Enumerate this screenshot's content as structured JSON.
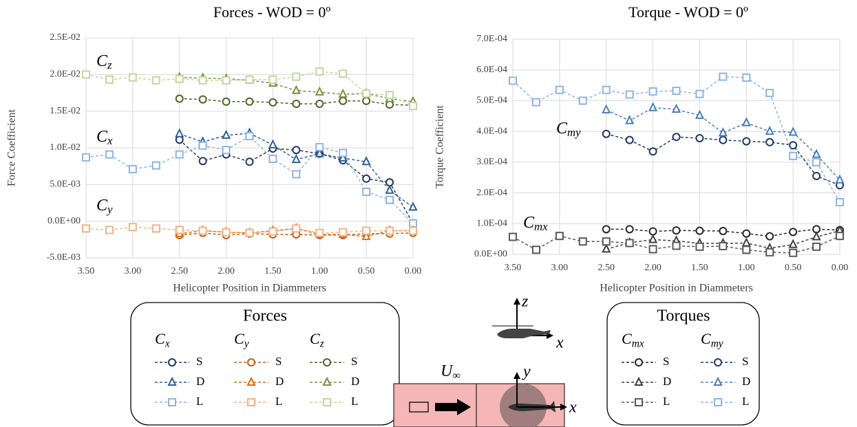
{
  "chart_data": [
    {
      "type": "line",
      "title": "Forces - WOD = 0º",
      "x_label": "Helicopter Position in Diammeters",
      "y_label": "Force Coefficient",
      "legend_title": "Forces",
      "grid": true,
      "xlim": [
        3.5,
        0
      ],
      "xticks": [
        {
          "value": 3.5,
          "label": "3.50"
        },
        {
          "value": 3,
          "label": "3.00"
        },
        {
          "value": 2.5,
          "label": "2.50"
        },
        {
          "value": 2,
          "label": "2.00"
        },
        {
          "value": 1.5,
          "label": "1.50"
        },
        {
          "value": 1,
          "label": "1.00"
        },
        {
          "value": 0.5,
          "label": "0.50"
        },
        {
          "value": 0,
          "label": "0.00"
        }
      ],
      "ylim": [
        -0.005,
        0.025
      ],
      "yticks": [
        {
          "value": -0.005,
          "label": "-5.0E-03"
        },
        {
          "value": 0,
          "label": "0.0E+00"
        },
        {
          "value": 0.005,
          "label": "5.0E-03"
        },
        {
          "value": 0.01,
          "label": "1.0E-02"
        },
        {
          "value": 0.015,
          "label": "1.5E-02"
        },
        {
          "value": 0.02,
          "label": "2.0E-02"
        },
        {
          "value": 0.025,
          "label": "2.5E-02"
        }
      ],
      "x": [
        3.5,
        3.25,
        3,
        2.75,
        2.5,
        2.25,
        2,
        1.75,
        1.5,
        1.25,
        1,
        0.75,
        0.5,
        0.25,
        0
      ],
      "groups": [
        {
          "symbol": "C",
          "sub": "x",
          "series": [
            {
              "name": "S",
              "marker": "circle",
              "color": "#1f3864",
              "values": [
                null,
                null,
                null,
                null,
                0.0111,
                0.0082,
                0.0091,
                0.0081,
                0.0099,
                0.0097,
                0.0092,
                0.0083,
                0.0058,
                0.0053,
                -0.0003
              ]
            },
            {
              "name": "D",
              "marker": "triangle",
              "color": "#2e5f9a",
              "values": [
                null,
                null,
                null,
                null,
                0.0119,
                0.0108,
                0.0117,
                0.012,
                0.0104,
                0.0084,
                0.0092,
                0.0086,
                0.0081,
                0.0042,
                0.0019
              ]
            },
            {
              "name": "L",
              "marker": "square",
              "color": "#8eb4e3",
              "values": [
                0.0087,
                0.0091,
                0.0071,
                0.0076,
                0.0091,
                0.0103,
                0.0097,
                0.0116,
                0.0085,
                0.0064,
                0.0101,
                0.0093,
                0.004,
                0.0029,
                -0.0003
              ]
            }
          ]
        },
        {
          "symbol": "C",
          "sub": "y",
          "series": [
            {
              "name": "S",
              "marker": "circle",
              "color": "#c55a11",
              "values": [
                null,
                null,
                null,
                null,
                -0.0019,
                -0.0016,
                -0.0019,
                -0.0017,
                -0.0018,
                -0.0018,
                -0.0019,
                -0.0019,
                -0.0017,
                -0.0017,
                -0.0016
              ]
            },
            {
              "name": "D",
              "marker": "triangle",
              "color": "#e26b0a",
              "values": [
                null,
                null,
                null,
                null,
                -0.0017,
                -0.0013,
                -0.0015,
                -0.0016,
                -0.0013,
                -0.001,
                -0.0018,
                -0.0018,
                -0.0021,
                -0.0013,
                -0.0013
              ]
            },
            {
              "name": "L",
              "marker": "square",
              "color": "#f4b183",
              "values": [
                -0.001,
                -0.0012,
                -0.0008,
                -0.001,
                -0.0012,
                -0.0013,
                -0.0015,
                -0.0016,
                -0.0014,
                -0.001,
                -0.0016,
                -0.0015,
                -0.0013,
                -0.0013,
                -0.0013
              ]
            }
          ]
        },
        {
          "symbol": "C",
          "sub": "z",
          "series": [
            {
              "name": "S",
              "marker": "circle",
              "color": "#4f6228",
              "values": [
                null,
                null,
                null,
                null,
                0.0167,
                0.0166,
                0.0163,
                0.0163,
                0.0162,
                0.016,
                0.016,
                0.0164,
                0.0164,
                0.0159,
                0.0158
              ]
            },
            {
              "name": "D",
              "marker": "triangle",
              "color": "#77933c",
              "values": [
                null,
                null,
                null,
                null,
                0.0196,
                0.0195,
                0.0194,
                0.0192,
                0.0188,
                0.0178,
                0.0176,
                0.0173,
                0.0174,
                0.0167,
                0.0163
              ]
            },
            {
              "name": "L",
              "marker": "square",
              "color": "#c3d69b",
              "values": [
                0.02,
                0.0193,
                0.0196,
                0.0192,
                0.0194,
                0.0192,
                0.0192,
                0.0193,
                0.0193,
                0.0197,
                0.0204,
                0.0201,
                0.0174,
                0.0172,
                0.0157
              ]
            }
          ]
        }
      ]
    },
    {
      "type": "line",
      "title": "Torque - WOD = 0º",
      "x_label": "Helicopter Position in Diammeters",
      "y_label": "Torque Coefficient",
      "legend_title": "Torques",
      "grid": true,
      "xlim": [
        3.5,
        0
      ],
      "xticks": [
        {
          "value": 3.5,
          "label": "3.50"
        },
        {
          "value": 3,
          "label": "3.00"
        },
        {
          "value": 2.5,
          "label": "2.50"
        },
        {
          "value": 2,
          "label": "2.00"
        },
        {
          "value": 1.5,
          "label": "1.50"
        },
        {
          "value": 1,
          "label": "1.00"
        },
        {
          "value": 0.5,
          "label": "0.50"
        },
        {
          "value": 0,
          "label": "0.00"
        }
      ],
      "ylim": [
        0,
        0.0007
      ],
      "yticks": [
        {
          "value": 0,
          "label": "0.0E+00"
        },
        {
          "value": 0.0001,
          "label": "1.0E-04"
        },
        {
          "value": 0.0002,
          "label": "2.0E-04"
        },
        {
          "value": 0.0003,
          "label": "3.0E-04"
        },
        {
          "value": 0.0004,
          "label": "4.0E-04"
        },
        {
          "value": 0.0005,
          "label": "5.0E-04"
        },
        {
          "value": 0.0006,
          "label": "6.0E-04"
        },
        {
          "value": 0.0007,
          "label": "7.0E-04"
        }
      ],
      "x": [
        3.5,
        3.25,
        3,
        2.75,
        2.5,
        2.25,
        2,
        1.75,
        1.5,
        1.25,
        1,
        0.75,
        0.5,
        0.25,
        0
      ],
      "groups": [
        {
          "symbol": "C",
          "sub": "mx",
          "series": [
            {
              "name": "S",
              "marker": "circle",
              "color": "#262626",
              "values": [
                null,
                null,
                null,
                null,
                8.2e-05,
                8.2e-05,
                7.5e-05,
                7.8e-05,
                7.7e-05,
                7.6e-05,
                6.8e-05,
                5.9e-05,
                7.3e-05,
                8.2e-05,
                7.9e-05
              ]
            },
            {
              "name": "D",
              "marker": "triangle",
              "color": "#404040",
              "values": [
                null,
                null,
                null,
                null,
                1.7e-05,
                3.8e-05,
                4.8e-05,
                4.4e-05,
                3.6e-05,
                3.6e-05,
                3.7e-05,
                2e-05,
                3.2e-05,
                5.7e-05,
                7.7e-05
              ]
            },
            {
              "name": "L",
              "marker": "square",
              "color": "#595959",
              "values": [
                5.7e-05,
                1.5e-05,
                6e-05,
                4.2e-05,
                4.2e-05,
                3.7e-05,
                1.7e-05,
                2.8e-05,
                2.5e-05,
                2.7e-05,
                1.5e-05,
                7e-06,
                5e-06,
                2.5e-05,
                6e-05
              ]
            }
          ]
        },
        {
          "symbol": "C",
          "sub": "my",
          "series": [
            {
              "name": "S",
              "marker": "circle",
              "color": "#1f3864",
              "values": [
                null,
                null,
                null,
                null,
                0.000392,
                0.000372,
                0.000335,
                0.000382,
                0.000378,
                0.000372,
                0.000368,
                0.000365,
                0.000355,
                0.000255,
                0.000225
              ]
            },
            {
              "name": "D",
              "marker": "triangle",
              "color": "#4a7ebb",
              "values": [
                null,
                null,
                null,
                null,
                0.00047,
                0.000435,
                0.000477,
                0.000472,
                0.000452,
                0.000395,
                0.000428,
                0.0004,
                0.000397,
                0.000325,
                0.000242
              ]
            },
            {
              "name": "L",
              "marker": "square",
              "color": "#8eb4e3",
              "values": [
                0.000565,
                0.000495,
                0.000535,
                0.0005,
                0.000535,
                0.00052,
                0.00053,
                0.000532,
                0.000522,
                0.000578,
                0.000575,
                0.000525,
                0.00032,
                0.0003,
                0.00017
              ]
            }
          ]
        }
      ]
    }
  ],
  "diagram": {
    "side_view_labels": [
      "z",
      "x"
    ],
    "top_view_labels": [
      "y",
      "x"
    ],
    "freestream": {
      "symbol": "U",
      "sub": "∞"
    }
  }
}
